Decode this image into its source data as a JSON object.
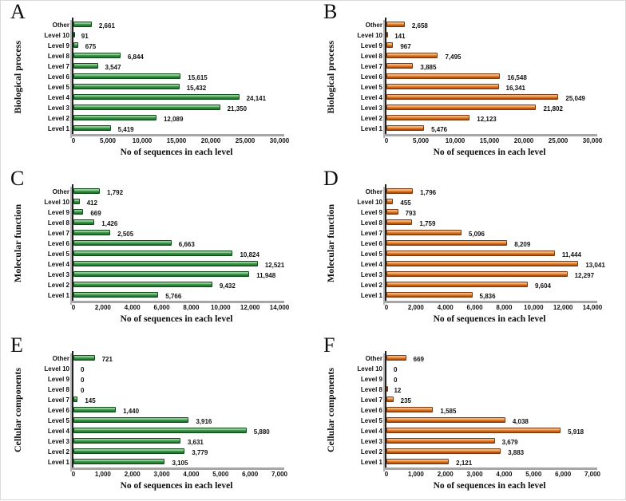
{
  "figure": {
    "xtitle": "No of sequences in each level",
    "categories": [
      "Other",
      "Level 10",
      "Level 9",
      "Level 8",
      "Level 7",
      "Level 6",
      "Level 5",
      "Level 4",
      "Level 3",
      "Level 2",
      "Level 1"
    ],
    "palette": {
      "green": {
        "border": "#0e4d19",
        "stops": [
          "#3e9b4a",
          "#d9eed4",
          "#46a453",
          "#2d8c3e",
          "#186126"
        ],
        "positions": [
          0,
          18,
          40,
          72,
          100
        ]
      },
      "orange": {
        "border": "#7c3a10",
        "stops": [
          "#df8136",
          "#f8dcba",
          "#ee8a33",
          "#d4681a",
          "#91400f"
        ],
        "positions": [
          0,
          18,
          40,
          72,
          100
        ]
      }
    }
  },
  "chart_data": [
    {
      "type": "bar",
      "panel": "A",
      "ylabel": "Biological process",
      "color": "green",
      "xlim": [
        0,
        30000
      ],
      "xticks": [
        "0",
        "5,000",
        "10,000",
        "15,000",
        "20,000",
        "25,000",
        "30,000"
      ],
      "values": [
        2661,
        91,
        675,
        6844,
        3547,
        15615,
        15432,
        24141,
        21350,
        12089,
        5419
      ],
      "value_labels": [
        "2,661",
        "91",
        "675",
        "6,844",
        "3,547",
        "15,615",
        "15,432",
        "24,141",
        "21,350",
        "12,089",
        "5,419"
      ]
    },
    {
      "type": "bar",
      "panel": "B",
      "ylabel": "Biological process",
      "color": "orange",
      "xlim": [
        0,
        30000
      ],
      "xticks": [
        "0",
        "5,000",
        "10,000",
        "15,000",
        "20,000",
        "25,000",
        "30,000"
      ],
      "values": [
        2658,
        141,
        967,
        7495,
        3885,
        16548,
        16341,
        25049,
        21802,
        12123,
        5476
      ],
      "value_labels": [
        "2,658",
        "141",
        "967",
        "7,495",
        "3,885",
        "16,548",
        "16,341",
        "25,049",
        "21,802",
        "12,123",
        "5,476"
      ]
    },
    {
      "type": "bar",
      "panel": "C",
      "ylabel": "Molecular function",
      "color": "green",
      "xlim": [
        0,
        14000
      ],
      "xticks": [
        "0",
        "2,000",
        "4,000",
        "6,000",
        "8,000",
        "10,000",
        "12,000",
        "14,000"
      ],
      "values": [
        1792,
        412,
        669,
        1426,
        2505,
        6663,
        10824,
        12521,
        11948,
        9432,
        5766
      ],
      "value_labels": [
        "1,792",
        "412",
        "669",
        "1,426",
        "2,505",
        "6,663",
        "10,824",
        "12,521",
        "11,948",
        "9,432",
        "5,766"
      ]
    },
    {
      "type": "bar",
      "panel": "D",
      "ylabel": "Molecular function",
      "color": "orange",
      "xlim": [
        0,
        14000
      ],
      "xticks": [
        "0",
        "2,000",
        "4,000",
        "6,000",
        "8,000",
        "10,000",
        "12,000",
        "14,000"
      ],
      "values": [
        1796,
        455,
        793,
        1759,
        5096,
        8209,
        11444,
        13041,
        12297,
        9604,
        5836
      ],
      "value_labels": [
        "1,796",
        "455",
        "793",
        "1,759",
        "5,096",
        "8,209",
        "11,444",
        "13,041",
        "12,297",
        "9,604",
        "5,836"
      ]
    },
    {
      "type": "bar",
      "panel": "E",
      "ylabel": "Cellular components",
      "color": "green",
      "xlim": [
        0,
        7000
      ],
      "xticks": [
        "0",
        "1,000",
        "2,000",
        "3,000",
        "4,000",
        "5,000",
        "6,000",
        "7,000"
      ],
      "values": [
        721,
        0,
        0,
        0,
        145,
        1440,
        3916,
        5880,
        3631,
        3779,
        3105
      ],
      "value_labels": [
        "721",
        "0",
        "0",
        "0",
        "145",
        "1,440",
        "3,916",
        "5,880",
        "3,631",
        "3,779",
        "3,105"
      ]
    },
    {
      "type": "bar",
      "panel": "F",
      "ylabel": "Cellular components",
      "color": "orange",
      "xlim": [
        0,
        7000
      ],
      "xticks": [
        "0",
        "1,000",
        "2,000",
        "3,000",
        "4,000",
        "5,000",
        "6,000",
        "7,000"
      ],
      "values": [
        669,
        0,
        0,
        12,
        235,
        1585,
        4038,
        5918,
        3679,
        3883,
        2121
      ],
      "value_labels": [
        "669",
        "0",
        "0",
        "12",
        "235",
        "1,585",
        "4,038",
        "5,918",
        "3,679",
        "3,883",
        "2,121"
      ]
    }
  ]
}
